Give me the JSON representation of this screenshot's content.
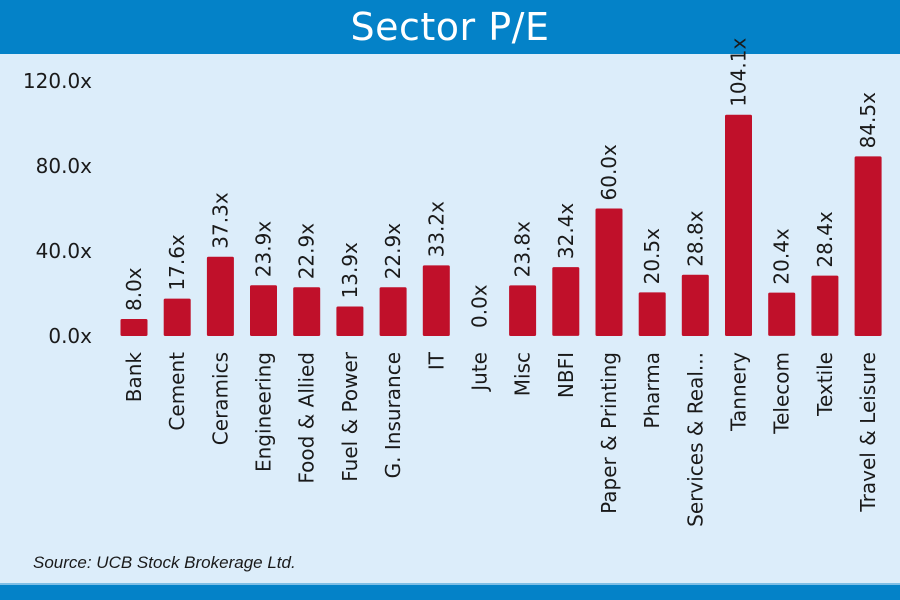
{
  "header": {
    "title": "Sector P/E"
  },
  "footer": {
    "source": "Source: UCB Stock Brokerage Ltd."
  },
  "colors": {
    "header_bg": "#0482c8",
    "background": "#dcedfa",
    "bar": "#c0102a",
    "text": "#1a1a1a"
  },
  "chart_data": {
    "type": "bar",
    "title": "Sector P/E",
    "xlabel": "",
    "ylabel": "",
    "ylim": [
      0,
      120
    ],
    "yticks": [
      0,
      40,
      80,
      120
    ],
    "ytick_labels": [
      "0.0x",
      "40.0x",
      "80.0x",
      "120.0x"
    ],
    "grid": false,
    "legend": "none",
    "categories": [
      "Bank",
      "Cement",
      "Ceramics",
      "Engineering",
      "Food & Allied",
      "Fuel & Power",
      "G. Insurance",
      "IT",
      "Jute",
      "Misc",
      "NBFI",
      "Paper & Printing",
      "Pharma",
      "Services & Real...",
      "Tannery",
      "Telecom",
      "Textile",
      "Travel & Leisure"
    ],
    "values": [
      8.0,
      17.6,
      37.3,
      23.9,
      22.9,
      13.9,
      22.9,
      33.2,
      0.0,
      23.8,
      32.4,
      60.0,
      20.5,
      28.8,
      104.1,
      20.4,
      28.4,
      84.5
    ],
    "value_labels": [
      "8.0x",
      "17.6x",
      "37.3x",
      "23.9x",
      "22.9x",
      "13.9x",
      "22.9x",
      "33.2x",
      "0.0x",
      "23.8x",
      "32.4x",
      "60.0x",
      "20.5x",
      "28.8x",
      "104.1x",
      "20.4x",
      "28.4x",
      "84.5x"
    ],
    "source": "Source: UCB Stock Brokerage Ltd."
  }
}
